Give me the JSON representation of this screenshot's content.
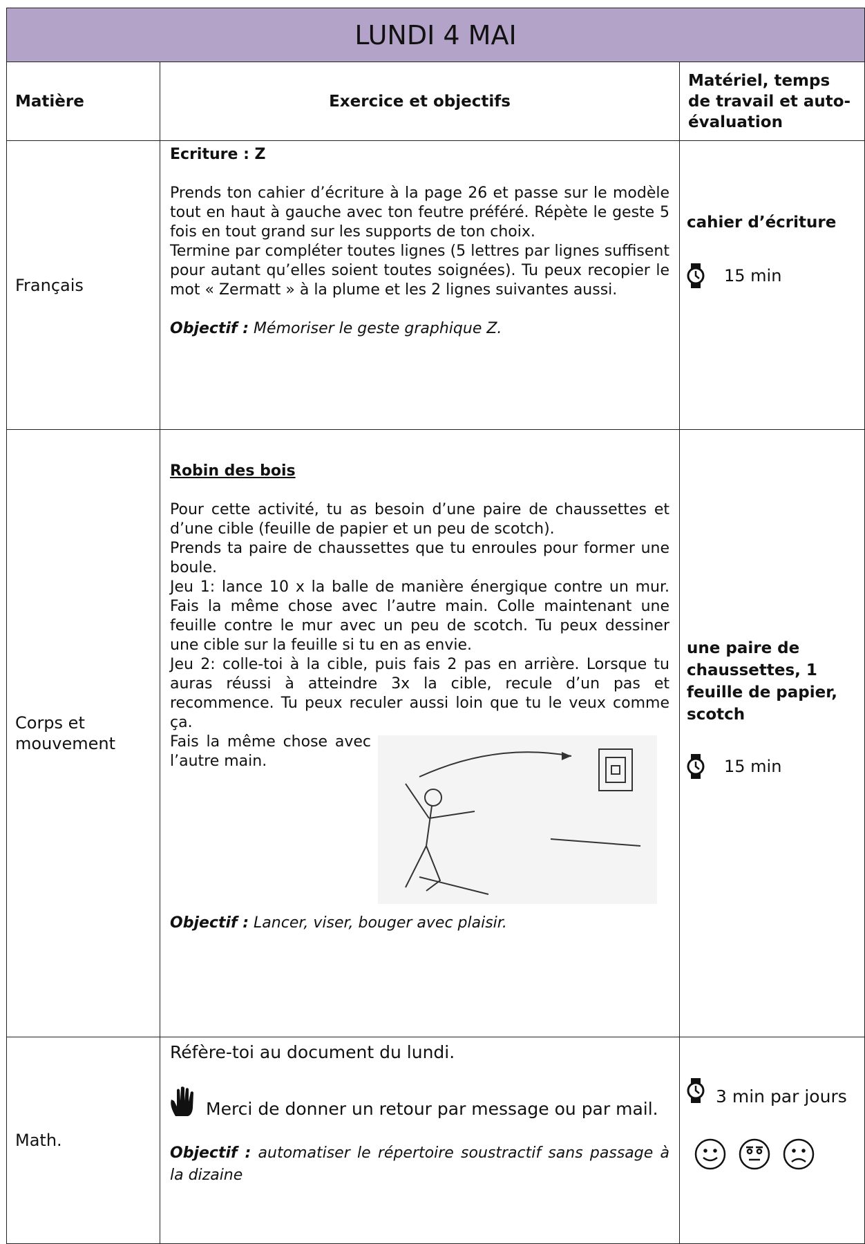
{
  "header": {
    "title": "LUNDI 4 MAI"
  },
  "table": {
    "columns": [
      "Matière",
      "Exercice et objectifs",
      "Matériel, temps de travail et auto-évaluation"
    ],
    "rows": [
      {
        "subject": "Français",
        "heading": "Ecriture : Z",
        "paragraphs": [
          "Prends ton cahier d’écriture à la page 26 et passe sur le modèle tout en haut à gauche avec ton feutre préféré. Répète le geste 5 fois en tout grand sur les supports de ton choix.",
          "Termine par compléter toutes lignes (5 lettres par lignes suffisent pour autant qu’elles soient toutes soignées). Tu peux recopier le mot « Zermatt » à la plume et les 2 lignes suivantes aussi."
        ],
        "objective_label": "Objectif :",
        "objective": "Mémoriser le geste graphique Z.",
        "material": "cahier d’écriture",
        "time": "15 min"
      },
      {
        "subject": "Corps et mouvement",
        "heading": "Robin des bois",
        "paragraphs": [
          "Pour cette activité, tu as besoin d’une paire de chaussettes et d’une cible (feuille de papier et un peu de scotch).",
          "Prends ta paire de chaussettes que tu enroules pour former une boule.",
          "Jeu 1: lance 10 x la balle de manière énergique contre un mur. Fais la même chose avec l’autre main. Colle maintenant une feuille contre le mur avec un peu de scotch. Tu peux dessiner une cible sur la feuille si tu en as envie.",
          "Jeu 2: colle-toi à la cible, puis fais 2 pas en arrière. Lorsque tu auras réussi à atteindre 3x la cible, recule d’un pas et recommence. Tu peux reculer aussi loin que tu le veux comme ça.",
          "Fais la même chose avec l’autre main."
        ],
        "objective_label": "Objectif :",
        "objective": "Lancer, viser, bouger avec plaisir.",
        "material": "une paire de chaussettes, 1 feuille de papier, scotch",
        "time": "15 min"
      },
      {
        "subject": "Math.",
        "paragraphs": [
          "Réfère-toi au document du lundi.",
          "Merci de donner un retour par message ou par mail."
        ],
        "objective_label": "Objectif :",
        "objective": "automatiser le répertoire soustractif sans passage à la dizaine",
        "time": "3 min par jours"
      }
    ]
  }
}
